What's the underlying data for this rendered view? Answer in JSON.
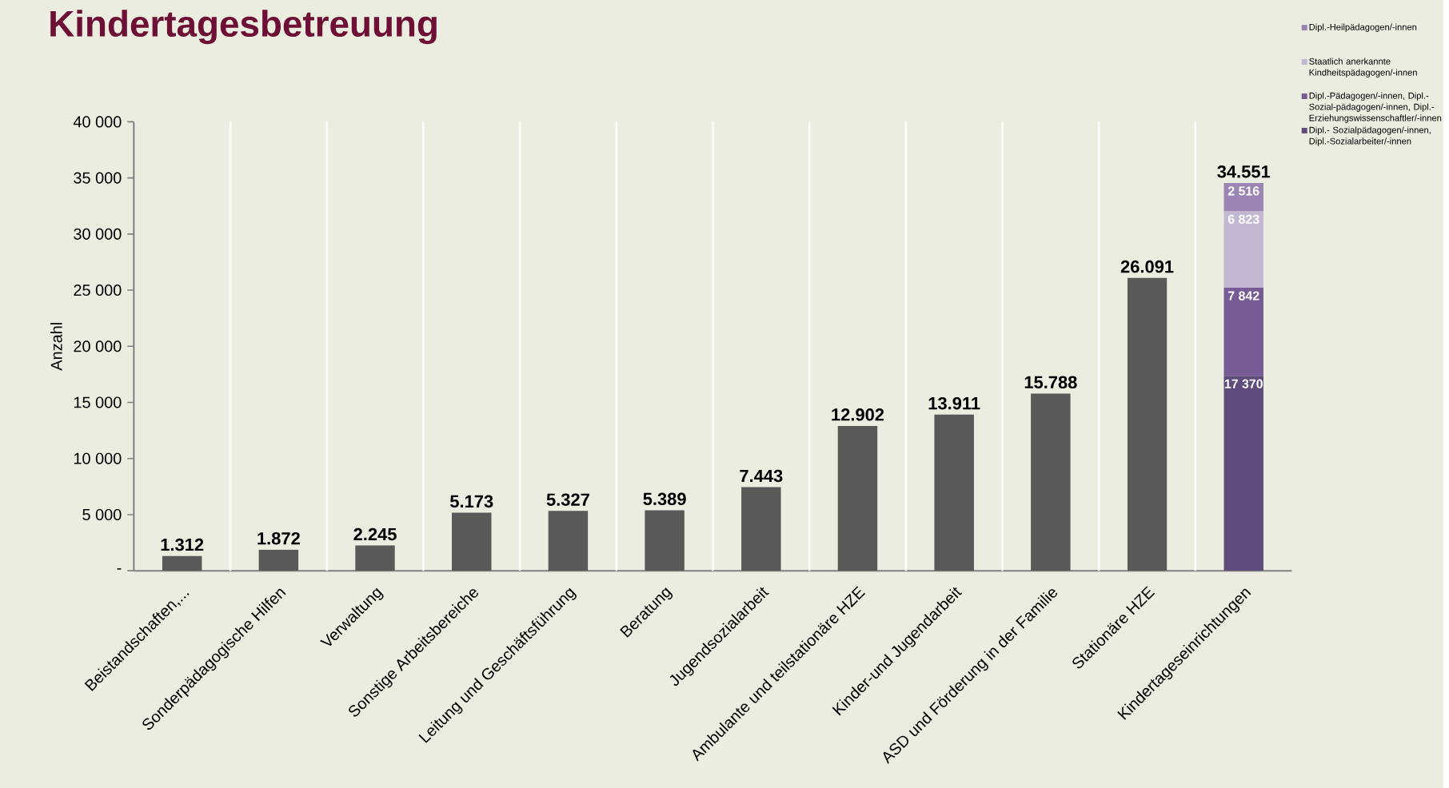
{
  "chart_data": {
    "type": "bar",
    "title": "Kindertagesbetreuung",
    "ylabel": "Anzahl",
    "categories": [
      "Beistandschaften,...",
      "Sonderpädagogische Hilfen",
      "Verwaltung",
      "Sonstige Arbeitsbereiche",
      "Leitung und Geschäftsführung",
      "Beratung",
      "Jugendsozialarbeit",
      "Ambulante und teilstationäre HZE",
      "Kinder-und Jugendarbeit",
      "ASD und Förderung in der Familie",
      "Stationäre HZE",
      "Kindertageseinrichtungen"
    ],
    "series": [
      {
        "color": "#595959",
        "values": [
          1312,
          1872,
          2245,
          5173,
          5327,
          5389,
          7443,
          12902,
          13911,
          15788,
          26091,
          null
        ]
      },
      {
        "name": "Dipl.- Sozialpädagogen/-innen, Dipl.-Sozialarbeiter/-innen",
        "color": "#5f4b7c",
        "values": [
          null,
          null,
          null,
          null,
          null,
          null,
          null,
          null,
          null,
          null,
          null,
          17370
        ],
        "value_labels": [
          null,
          null,
          null,
          null,
          null,
          null,
          null,
          null,
          null,
          null,
          null,
          "17 370"
        ]
      },
      {
        "name": "Dipl.-Pädagogen/-innen, Dipl.-Sozial-pädagogen/-innen, Dipl.-Erziehungswissenschaftler/-innen",
        "color": "#765b94",
        "values": [
          null,
          null,
          null,
          null,
          null,
          null,
          null,
          null,
          null,
          null,
          null,
          7842
        ],
        "value_labels": [
          null,
          null,
          null,
          null,
          null,
          null,
          null,
          null,
          null,
          null,
          null,
          "7 842"
        ]
      },
      {
        "name": "Staatlich anerkannte Kindheitspädagogen/-innen",
        "color": "#c3b8d1",
        "values": [
          null,
          null,
          null,
          null,
          null,
          null,
          null,
          null,
          null,
          null,
          null,
          6823
        ],
        "value_labels": [
          null,
          null,
          null,
          null,
          null,
          null,
          null,
          null,
          null,
          null,
          null,
          "6 823"
        ]
      },
      {
        "name": "Dipl.-Heilpädagogen/-innen",
        "color": "#9b85b5",
        "values": [
          null,
          null,
          null,
          null,
          null,
          null,
          null,
          null,
          null,
          null,
          null,
          2516
        ],
        "value_labels": [
          null,
          null,
          null,
          null,
          null,
          null,
          null,
          null,
          null,
          null,
          null,
          "2 516"
        ]
      }
    ],
    "stacked": true,
    "totals": [
      "1.312",
      "1.872",
      "2.245",
      "5.173",
      "5.327",
      "5.389",
      "7.443",
      "12.902",
      "13.911",
      "15.788",
      "26.091",
      "34.551"
    ],
    "ylim": [
      0,
      40000
    ],
    "yticks": [
      {
        "value": 0,
        "label": "-"
      },
      {
        "value": 5000,
        "label": "5 000"
      },
      {
        "value": 10000,
        "label": "10 000"
      },
      {
        "value": 15000,
        "label": "15 000"
      },
      {
        "value": 20000,
        "label": "20 000"
      },
      {
        "value": 25000,
        "label": "25 000"
      },
      {
        "value": 30000,
        "label": "30 000"
      },
      {
        "value": 35000,
        "label": "35 000"
      },
      {
        "value": 40000,
        "label": "40 000"
      }
    ],
    "grid": "x",
    "legend": "top right"
  }
}
